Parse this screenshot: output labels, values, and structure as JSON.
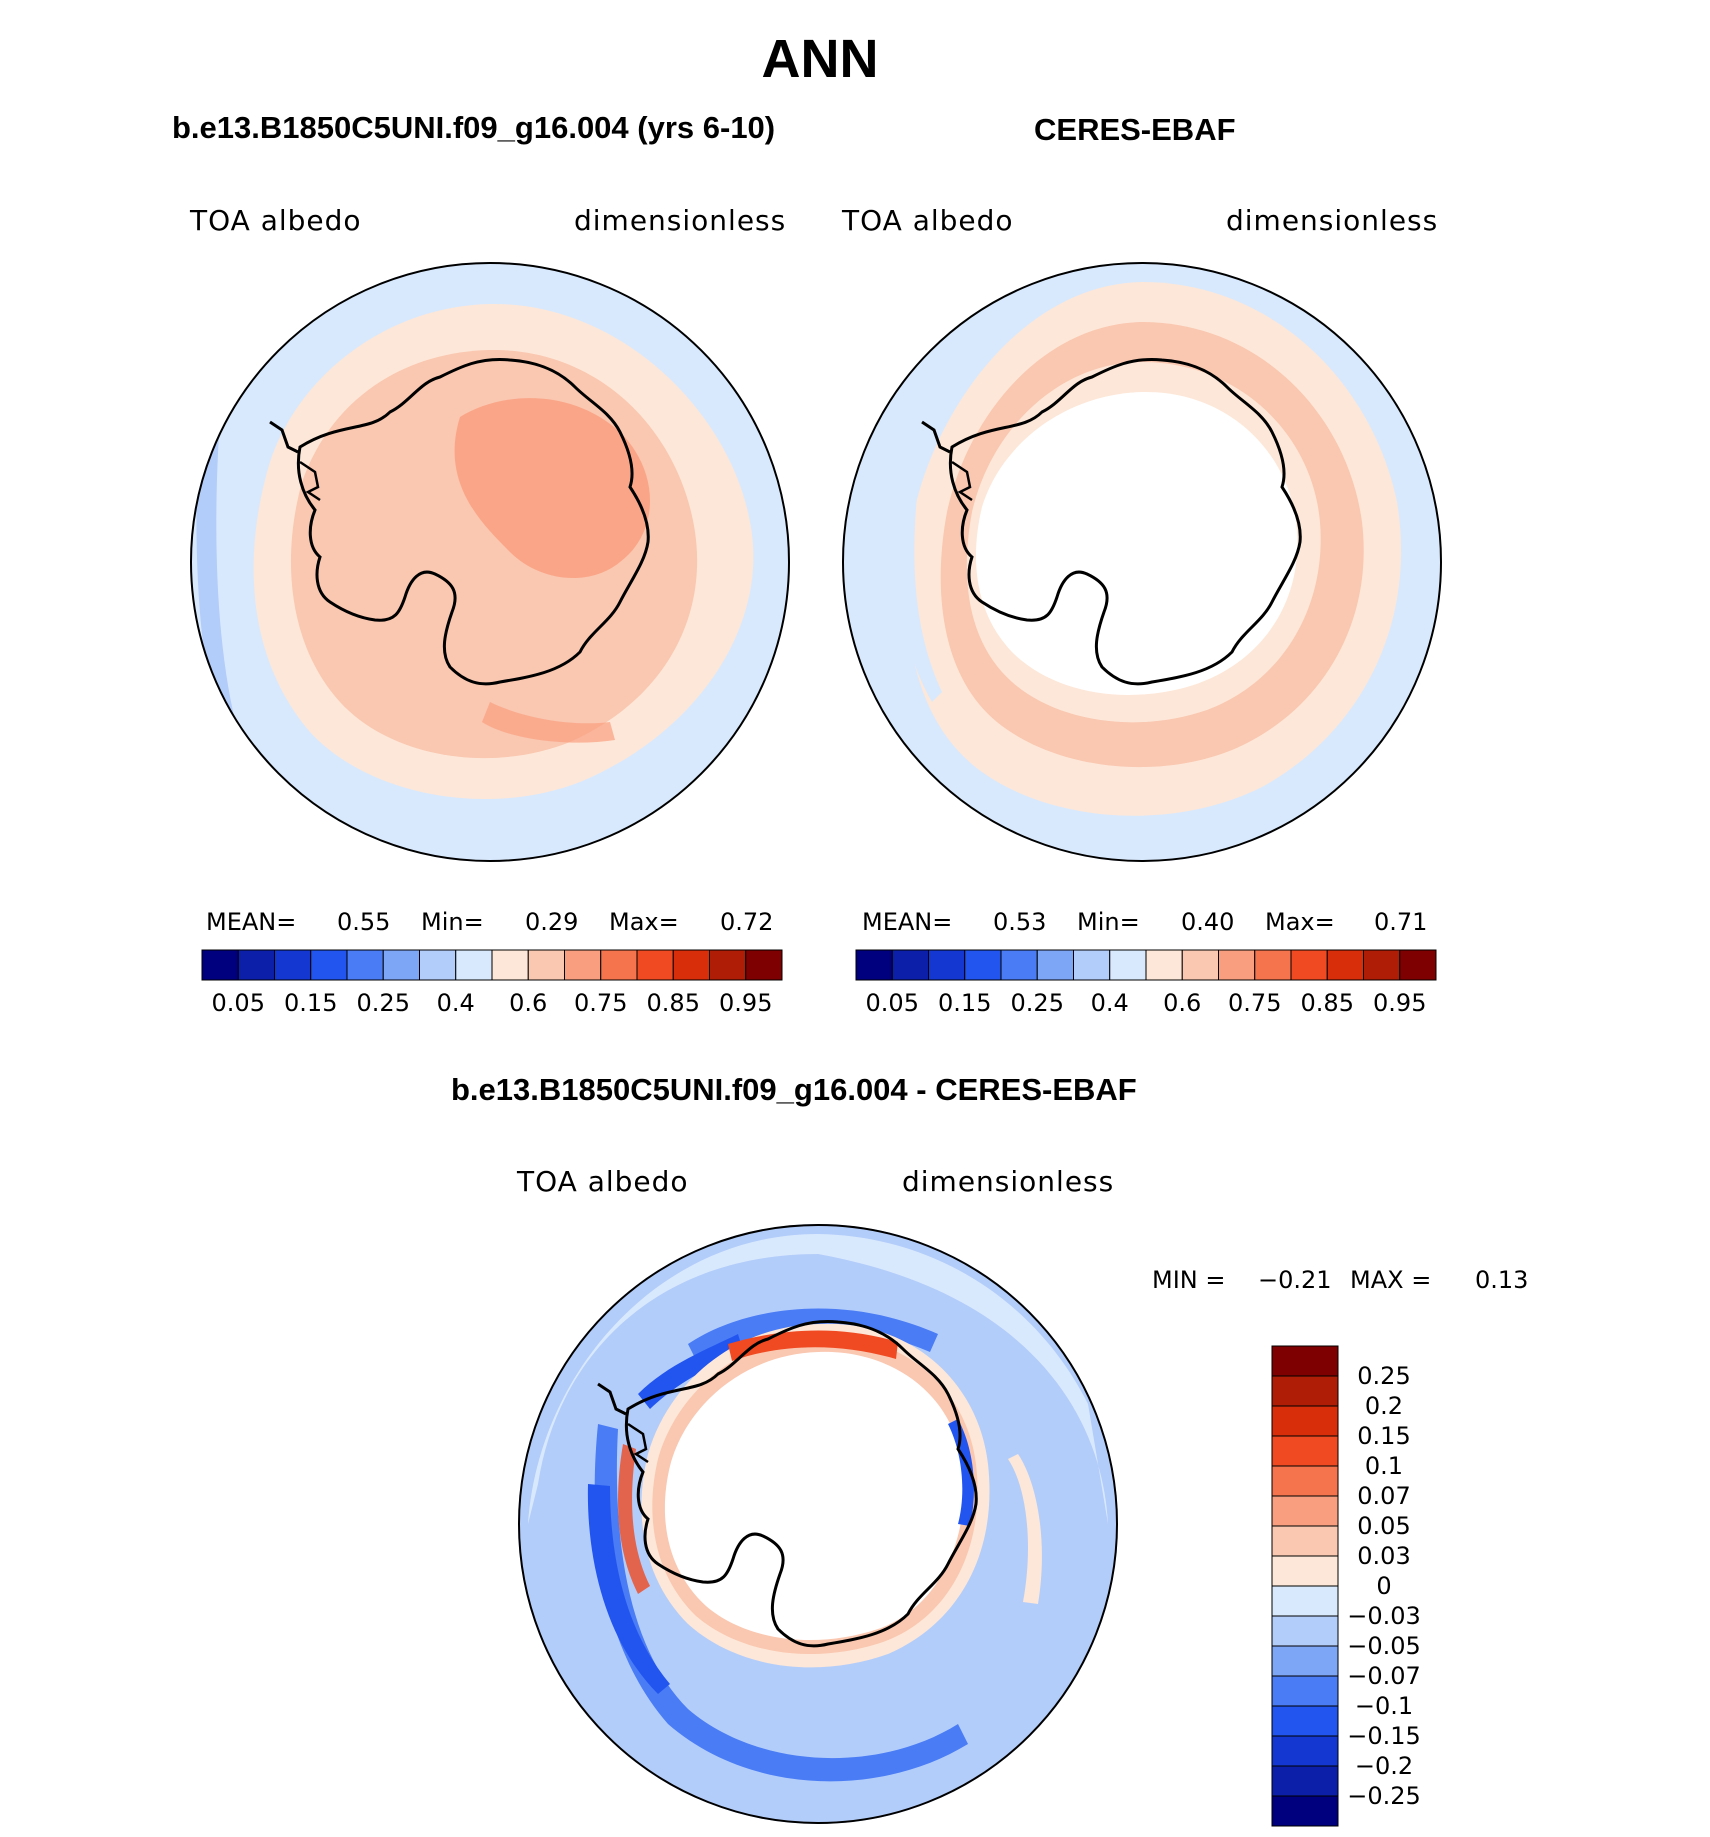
{
  "title": "ANN",
  "panels": [
    {
      "title": "b.e13.B1850C5UNI.f09_g16.004 (yrs 6-10)",
      "variable": "TOA albedo",
      "units": "dimensionless",
      "stats": {
        "mean_label": "MEAN=",
        "mean": "0.55",
        "min_label": "Min=",
        "min": "0.29",
        "max_label": "Max=",
        "max": "0.72"
      }
    },
    {
      "title": "CERES-EBAF",
      "variable": "TOA albedo",
      "units": "dimensionless",
      "stats": {
        "mean_label": "MEAN=",
        "mean": "0.53",
        "min_label": "Min=",
        "min": "0.40",
        "max_label": "Max=",
        "max": "0.71"
      }
    },
    {
      "title": "b.e13.B1850C5UNI.f09_g16.004 - CERES-EBAF",
      "variable": "TOA albedo",
      "units": "dimensionless",
      "stats": {
        "min_label": "MIN =",
        "min": "−0.21",
        "max_label": "MAX =",
        "max": "0.13"
      }
    }
  ],
  "colorbar_top": {
    "labels": [
      "0.05",
      "0.15",
      "0.25",
      "0.4",
      "0.6",
      "0.75",
      "0.85",
      "0.95"
    ],
    "colors": [
      "#00007f",
      "#0b1fa8",
      "#1436d1",
      "#2255f0",
      "#4a7cf5",
      "#7ea6f7",
      "#b3cdfa",
      "#d9e9fd",
      "#fde7d8",
      "#fac7b0",
      "#f99f80",
      "#f5734d",
      "#ef4a22",
      "#d92e0a",
      "#b01d06",
      "#7f0000"
    ]
  },
  "colorbar_diff": {
    "labels": [
      "0.25",
      "0.2",
      "0.15",
      "0.1",
      "0.07",
      "0.05",
      "0.03",
      "0",
      "−0.03",
      "−0.05",
      "−0.07",
      "−0.1",
      "−0.15",
      "−0.2",
      "−0.25"
    ],
    "colors": [
      "#7f0000",
      "#b01d06",
      "#d92e0a",
      "#ef4a22",
      "#f5734d",
      "#f99f80",
      "#fac7b0",
      "#fde7d8",
      "#d9e9fd",
      "#b3cdfa",
      "#7ea6f7",
      "#4a7cf5",
      "#2255f0",
      "#1436d1",
      "#0b1fa8",
      "#00007f"
    ]
  },
  "fill_colors": {
    "ocean_low": "#d9e9fd",
    "mid_ocean": "#b3cdfa",
    "ring_light": "#fde7d8",
    "ring_mid": "#fac7b0",
    "ice_strong": "#f99f80",
    "neg_strong": "#2255f0",
    "neg_mid": "#4a7cf5",
    "pos_strong": "#ef4a22",
    "missing": "#ffffff"
  }
}
